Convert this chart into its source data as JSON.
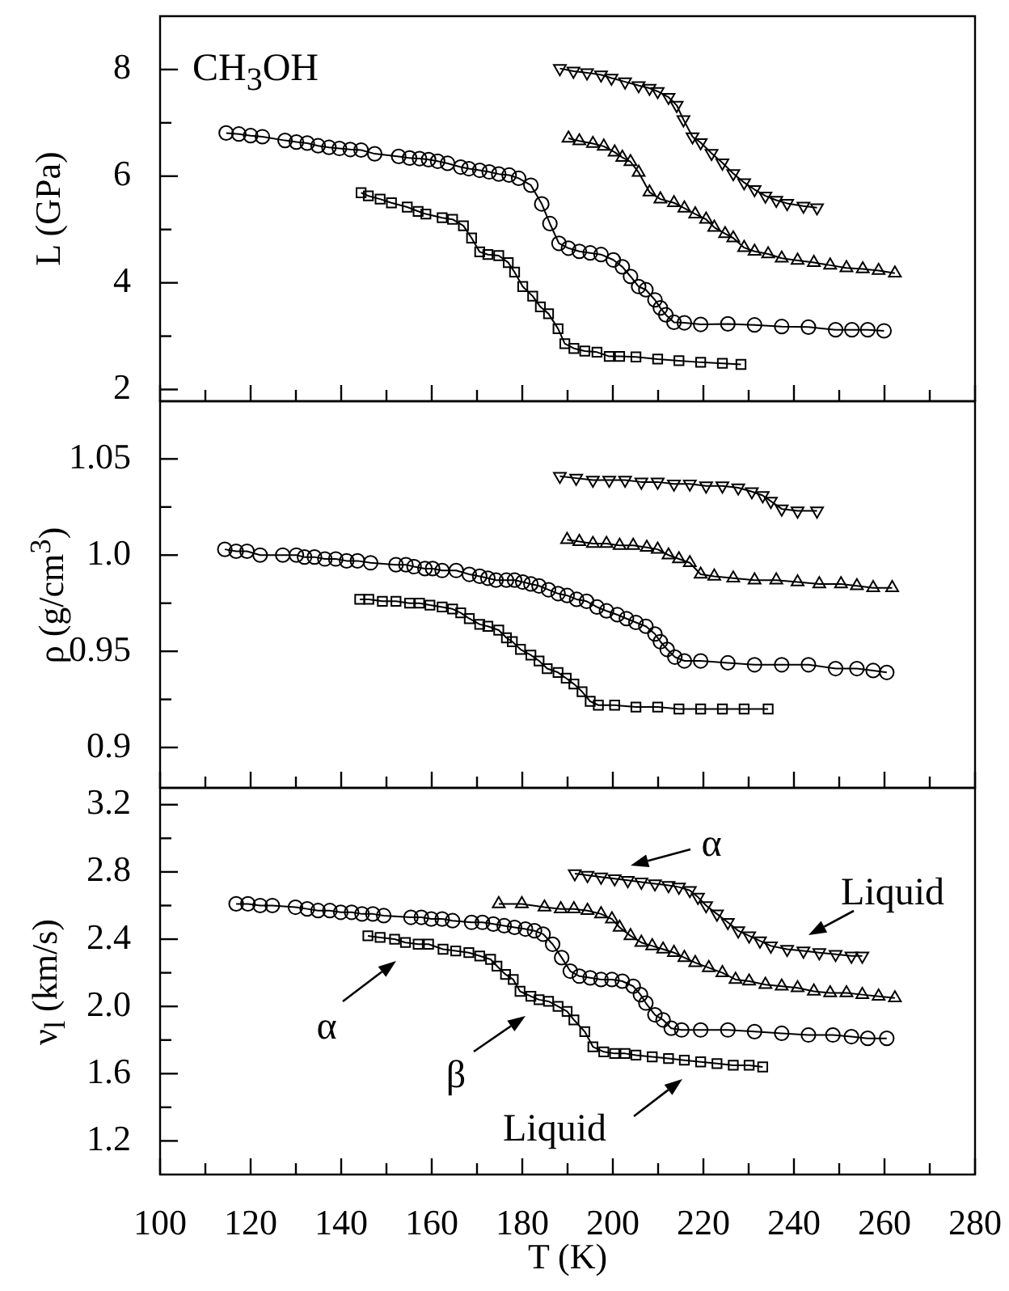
{
  "chart_data": [
    {
      "type": "line",
      "ylabel": "L (GPa)",
      "annotations": [
        "CH$_{3}$OH"
      ],
      "xlim": [
        100,
        280
      ],
      "xticks": [
        100,
        {
          "value": 110,
          "label": null
        },
        120,
        {
          "value": 130,
          "label": null
        },
        140,
        {
          "value": 150,
          "label": null
        },
        160,
        {
          "value": 170,
          "label": null
        },
        180,
        {
          "value": 190,
          "label": null
        },
        200,
        {
          "value": 210,
          "label": null
        },
        220,
        {
          "value": 230,
          "label": null
        },
        240,
        {
          "value": 250,
          "label": null
        },
        260,
        {
          "value": 270,
          "label": null
        },
        280
      ],
      "ylim": [
        1.78,
        9
      ],
      "yticks": [
        2,
        {
          "value": 3,
          "label": null
        },
        4,
        {
          "value": 5,
          "label": null
        },
        6,
        {
          "value": 7,
          "label": null
        },
        8
      ],
      "tick_labels": "y",
      "grid": false,
      "legend": false,
      "line_style": "solid",
      "series": [
        {
          "color": "#000000",
          "marker": "circle",
          "x": [
            114.6,
            117.4,
            120,
            122.6,
            127.6,
            130.1,
            132.5,
            134.9,
            137.3,
            139.6,
            142,
            144.4,
            147.4,
            152.7,
            155.1,
            157.3,
            159.3,
            161.3,
            163.5,
            166.4,
            168.2,
            170.6,
            172.7,
            174.8,
            177.1,
            179.2,
            181.9,
            184.3,
            186.1,
            188.1,
            190.2,
            192.6,
            195,
            197.4,
            200.1,
            202.1,
            203.9,
            205.7,
            207.3,
            209.3,
            210.5,
            211.7,
            213.5,
            215.8,
            219.4,
            225.4,
            231.3,
            237.3,
            243.2,
            249.2,
            252.8,
            256.3,
            259.9
          ],
          "values": [
            6.81,
            6.79,
            6.76,
            6.74,
            6.67,
            6.64,
            6.62,
            6.57,
            6.54,
            6.52,
            6.5,
            6.49,
            6.42,
            6.37,
            6.34,
            6.33,
            6.31,
            6.28,
            6.24,
            6.17,
            6.14,
            6.11,
            6.08,
            6.04,
            6.02,
            5.96,
            5.83,
            5.48,
            5.11,
            4.74,
            4.65,
            4.59,
            4.56,
            4.53,
            4.43,
            4.3,
            4.12,
            3.93,
            3.87,
            3.68,
            3.53,
            3.4,
            3.26,
            3.25,
            3.22,
            3.23,
            3.21,
            3.18,
            3.17,
            3.12,
            3.12,
            3.12,
            3.1
          ]
        },
        {
          "color": "#000000",
          "marker": "square",
          "x": [
            144.4,
            146,
            148.6,
            151.1,
            154.6,
            157,
            158.7,
            162.3,
            164.6,
            167,
            168.8,
            170.6,
            172.4,
            174.8,
            176.9,
            178.3,
            180.1,
            182.3,
            184,
            185.8,
            187.9,
            189.4,
            191.4,
            193.8,
            196.5,
            199.2,
            201.5,
            205.1,
            209.9,
            214.6,
            219.4,
            224.2,
            228.3
          ],
          "values": [
            5.69,
            5.63,
            5.57,
            5.5,
            5.42,
            5.34,
            5.29,
            5.22,
            5.19,
            5.07,
            4.84,
            4.58,
            4.53,
            4.51,
            4.38,
            4.2,
            3.93,
            3.75,
            3.55,
            3.42,
            3.14,
            2.86,
            2.77,
            2.72,
            2.7,
            2.62,
            2.62,
            2.61,
            2.57,
            2.54,
            2.51,
            2.49,
            2.47
          ]
        },
        {
          "color": "#000000",
          "marker": "triangle",
          "x": [
            190.2,
            192.6,
            195.6,
            198,
            200.4,
            202.1,
            203.9,
            205.7,
            208.1,
            210.5,
            213.5,
            215.8,
            218.2,
            220.6,
            222.4,
            224.8,
            226.6,
            229,
            231.3,
            234.3,
            237.3,
            240.8,
            244.4,
            248,
            251.6,
            255.2,
            258.7,
            262.3
          ],
          "values": [
            6.71,
            6.66,
            6.61,
            6.56,
            6.45,
            6.35,
            6.27,
            6.07,
            5.7,
            5.57,
            5.5,
            5.4,
            5.29,
            5.19,
            5.04,
            4.92,
            4.84,
            4.66,
            4.59,
            4.54,
            4.46,
            4.42,
            4.38,
            4.33,
            4.28,
            4.26,
            4.23,
            4.18
          ]
        },
        {
          "color": "#000000",
          "marker": "triangle-down",
          "x": [
            188.3,
            191.3,
            194.3,
            197.4,
            199.7,
            202.7,
            205.7,
            208.1,
            209.9,
            212.3,
            214.1,
            215.6,
            217.6,
            219.4,
            221.8,
            224.2,
            226.6,
            229,
            231.3,
            233.7,
            236.1,
            238.5,
            242.1,
            245.1
          ],
          "values": [
            8.02,
            7.97,
            7.94,
            7.9,
            7.84,
            7.77,
            7.7,
            7.65,
            7.59,
            7.48,
            7.33,
            7.06,
            6.74,
            6.63,
            6.43,
            6.25,
            6.05,
            5.88,
            5.75,
            5.63,
            5.55,
            5.49,
            5.44,
            5.41
          ]
        }
      ]
    },
    {
      "type": "line",
      "ylabel": "ρ (g/cm$^{3}$)",
      "xlim": [
        100,
        280
      ],
      "xticks": [
        100,
        {
          "value": 110,
          "label": null
        },
        120,
        {
          "value": 130,
          "label": null
        },
        140,
        {
          "value": 150,
          "label": null
        },
        160,
        {
          "value": 170,
          "label": null
        },
        180,
        {
          "value": 190,
          "label": null
        },
        200,
        {
          "value": 210,
          "label": null
        },
        220,
        {
          "value": 230,
          "label": null
        },
        240,
        {
          "value": 250,
          "label": null
        },
        260,
        {
          "value": 270,
          "label": null
        },
        280
      ],
      "ylim": [
        0.879,
        1.08
      ],
      "yticks": [
        0.9,
        {
          "value": 0.925,
          "label": null
        },
        0.95,
        {
          "value": 0.975,
          "label": null
        },
        {
          "value": 1,
          "label": "1.0"
        },
        {
          "value": 1.025,
          "label": null
        },
        1.05
      ],
      "tick_labels": "y",
      "grid": false,
      "legend": false,
      "line_style": "solid",
      "series": [
        {
          "color": "#000000",
          "marker": "circle",
          "x": [
            114.3,
            116.8,
            119.2,
            122.1,
            127.1,
            130.1,
            131.9,
            134.1,
            136.4,
            138.8,
            141.2,
            143.6,
            146.5,
            152.1,
            154.3,
            156.1,
            158.5,
            160.2,
            162.3,
            165.4,
            168.3,
            170.6,
            172.4,
            174.2,
            176.5,
            178.3,
            180.1,
            181.9,
            183.7,
            185.8,
            187.9,
            189.9,
            192,
            194.2,
            196.5,
            198.6,
            201,
            203,
            205.1,
            207.3,
            209.3,
            210.5,
            212,
            213.7,
            215.8,
            219.4,
            225.4,
            231.3,
            237.3,
            243.2,
            249.2,
            253.9,
            257.5,
            260.5
          ],
          "values": [
            1.003,
            1.002,
            1.002,
            1.0,
            1.0,
            1.0,
            0.999,
            0.999,
            0.998,
            0.998,
            0.997,
            0.997,
            0.996,
            0.995,
            0.995,
            0.994,
            0.993,
            0.993,
            0.992,
            0.992,
            0.99,
            0.989,
            0.988,
            0.987,
            0.987,
            0.987,
            0.986,
            0.985,
            0.984,
            0.982,
            0.98,
            0.979,
            0.977,
            0.976,
            0.973,
            0.971,
            0.969,
            0.967,
            0.965,
            0.963,
            0.959,
            0.955,
            0.951,
            0.947,
            0.945,
            0.945,
            0.944,
            0.943,
            0.943,
            0.943,
            0.941,
            0.941,
            0.94,
            0.939
          ]
        },
        {
          "color": "#000000",
          "marker": "square",
          "x": [
            144.1,
            146.1,
            149.1,
            152.1,
            155.1,
            157.3,
            159.6,
            162.3,
            164.6,
            166.4,
            168.3,
            170.6,
            172.4,
            174.8,
            176.5,
            177.8,
            179.6,
            181.9,
            183.7,
            185.5,
            187.9,
            189.7,
            191.4,
            193.2,
            195,
            196.8,
            200.4,
            205.1,
            209.9,
            214.6,
            219.4,
            224.2,
            229,
            234.3
          ],
          "values": [
            0.977,
            0.977,
            0.976,
            0.976,
            0.975,
            0.975,
            0.974,
            0.973,
            0.972,
            0.97,
            0.967,
            0.964,
            0.963,
            0.961,
            0.957,
            0.955,
            0.951,
            0.948,
            0.945,
            0.941,
            0.939,
            0.936,
            0.933,
            0.929,
            0.924,
            0.922,
            0.922,
            0.921,
            0.921,
            0.92,
            0.92,
            0.92,
            0.92,
            0.92
          ]
        },
        {
          "color": "#000000",
          "marker": "triangle",
          "x": [
            189.9,
            192.6,
            195.6,
            198.6,
            201.5,
            204.5,
            207.5,
            209.9,
            212.3,
            214.6,
            217,
            219.4,
            222.4,
            226.6,
            231.3,
            236.1,
            240.8,
            245.6,
            250.4,
            253.9,
            257.5,
            261.7
          ],
          "values": [
            1.008,
            1.007,
            1.006,
            1.006,
            1.005,
            1.005,
            1.004,
            1.003,
            1.0,
            0.998,
            0.996,
            0.99,
            0.989,
            0.988,
            0.987,
            0.987,
            0.986,
            0.985,
            0.985,
            0.984,
            0.983,
            0.983
          ]
        },
        {
          "color": "#000000",
          "marker": "triangle-down",
          "x": [
            188.3,
            191.9,
            195.6,
            199.2,
            202.7,
            206.3,
            209.9,
            213.5,
            217,
            220.6,
            224.2,
            227.7,
            230.7,
            233.1,
            234.9,
            237.3,
            240.8,
            245.1
          ],
          "values": [
            1.041,
            1.04,
            1.039,
            1.039,
            1.039,
            1.038,
            1.038,
            1.037,
            1.037,
            1.036,
            1.036,
            1.035,
            1.033,
            1.031,
            1.028,
            1.024,
            1.023,
            1.023
          ]
        }
      ]
    },
    {
      "type": "line",
      "xlabel": "T (K)",
      "ylabel": "ν$_{l}$ (km/s)",
      "annotations": [
        "α",
        "Liquid",
        "α",
        "β",
        "Liquid"
      ],
      "xlim": [
        100,
        280
      ],
      "xticks": [
        100,
        {
          "value": 110,
          "label": null
        },
        120,
        {
          "value": 130,
          "label": null
        },
        140,
        {
          "value": 150,
          "label": null
        },
        160,
        {
          "value": 170,
          "label": null
        },
        180,
        {
          "value": 190,
          "label": null
        },
        200,
        {
          "value": 210,
          "label": null
        },
        220,
        {
          "value": 230,
          "label": null
        },
        240,
        {
          "value": 250,
          "label": null
        },
        260,
        {
          "value": 270,
          "label": null
        },
        280
      ],
      "ylim": [
        1.0,
        3.3
      ],
      "yticks": [
        1.2,
        {
          "value": 1.4,
          "label": null
        },
        1.6,
        {
          "value": 1.8,
          "label": null
        },
        {
          "value": 2,
          "label": "2.0"
        },
        {
          "value": 2.2,
          "label": null
        },
        2.4,
        {
          "value": 2.6,
          "label": null
        },
        2.8,
        {
          "value": 3,
          "label": null
        },
        3.2
      ],
      "grid": false,
      "legend": false,
      "line_style": "solid",
      "series": [
        {
          "color": "#000000",
          "marker": "circle",
          "x": [
            116.8,
            119.4,
            122.1,
            124.8,
            129.9,
            132.5,
            134.9,
            137.5,
            139.9,
            142.3,
            144.6,
            147,
            149.4,
            155.4,
            157.7,
            159.9,
            162.3,
            164.6,
            168.8,
            171.2,
            173.6,
            176,
            178.3,
            180.7,
            182.7,
            184.6,
            186.7,
            188.7,
            190.6,
            192.6,
            195,
            197.4,
            199.8,
            202.1,
            204.5,
            206.1,
            207.3,
            209.3,
            211.1,
            212.9,
            215.2,
            219.4,
            225.4,
            231.3,
            237.3,
            243.2,
            248.6,
            252.7,
            256.3,
            260.5
          ],
          "values": [
            2.61,
            2.61,
            2.6,
            2.6,
            2.59,
            2.58,
            2.57,
            2.57,
            2.56,
            2.56,
            2.55,
            2.55,
            2.54,
            2.53,
            2.53,
            2.52,
            2.52,
            2.51,
            2.5,
            2.5,
            2.49,
            2.48,
            2.47,
            2.46,
            2.45,
            2.43,
            2.37,
            2.29,
            2.21,
            2.18,
            2.17,
            2.16,
            2.16,
            2.15,
            2.12,
            2.07,
            2.02,
            1.95,
            1.92,
            1.87,
            1.86,
            1.86,
            1.86,
            1.85,
            1.84,
            1.83,
            1.83,
            1.82,
            1.81,
            1.81
          ]
        },
        {
          "color": "#000000",
          "marker": "square",
          "x": [
            145.9,
            148.6,
            151.8,
            154.2,
            157,
            159.3,
            162.5,
            165.3,
            168.2,
            170.6,
            173,
            174.4,
            176.3,
            178,
            179.5,
            181.9,
            183.7,
            185.8,
            187.9,
            189.9,
            191.4,
            193.8,
            195.6,
            198,
            200.4,
            202.7,
            205.1,
            208.7,
            212.3,
            215.8,
            219.4,
            223,
            226.6,
            230.1,
            233.1
          ],
          "values": [
            2.42,
            2.41,
            2.4,
            2.38,
            2.37,
            2.37,
            2.34,
            2.33,
            2.32,
            2.3,
            2.28,
            2.24,
            2.19,
            2.16,
            2.09,
            2.06,
            2.04,
            2.03,
            2.0,
            1.97,
            1.92,
            1.85,
            1.76,
            1.73,
            1.72,
            1.72,
            1.71,
            1.7,
            1.69,
            1.68,
            1.67,
            1.66,
            1.65,
            1.65,
            1.64
          ]
        },
        {
          "color": "#000000",
          "marker": "triangle",
          "x": [
            174.8,
            179.9,
            184.9,
            188.5,
            191.4,
            194.4,
            197.4,
            199.8,
            201.5,
            203.9,
            206.3,
            208.7,
            211.1,
            213.5,
            215.8,
            218.2,
            221.2,
            224.2,
            227.1,
            230.1,
            233.7,
            237.3,
            240.8,
            244.4,
            248,
            251.6,
            255.1,
            258.7,
            262.3
          ],
          "values": [
            2.61,
            2.61,
            2.59,
            2.58,
            2.58,
            2.57,
            2.55,
            2.52,
            2.47,
            2.42,
            2.38,
            2.36,
            2.34,
            2.32,
            2.29,
            2.26,
            2.23,
            2.2,
            2.16,
            2.15,
            2.13,
            2.12,
            2.11,
            2.09,
            2.08,
            2.08,
            2.07,
            2.06,
            2.05
          ]
        },
        {
          "color": "#000000",
          "marker": "triangle-down",
          "x": [
            191.6,
            194.4,
            197.4,
            200.4,
            203.3,
            206.3,
            209.3,
            212.3,
            214.6,
            217,
            218.8,
            220.6,
            223,
            225.4,
            227.7,
            230.1,
            232.5,
            234.9,
            238.5,
            242.1,
            245.6,
            249.2,
            252.7,
            255.1
          ],
          "values": [
            2.79,
            2.78,
            2.77,
            2.76,
            2.75,
            2.74,
            2.73,
            2.72,
            2.71,
            2.69,
            2.65,
            2.6,
            2.55,
            2.5,
            2.45,
            2.42,
            2.39,
            2.36,
            2.34,
            2.33,
            2.32,
            2.31,
            2.3,
            2.3
          ]
        }
      ]
    }
  ]
}
